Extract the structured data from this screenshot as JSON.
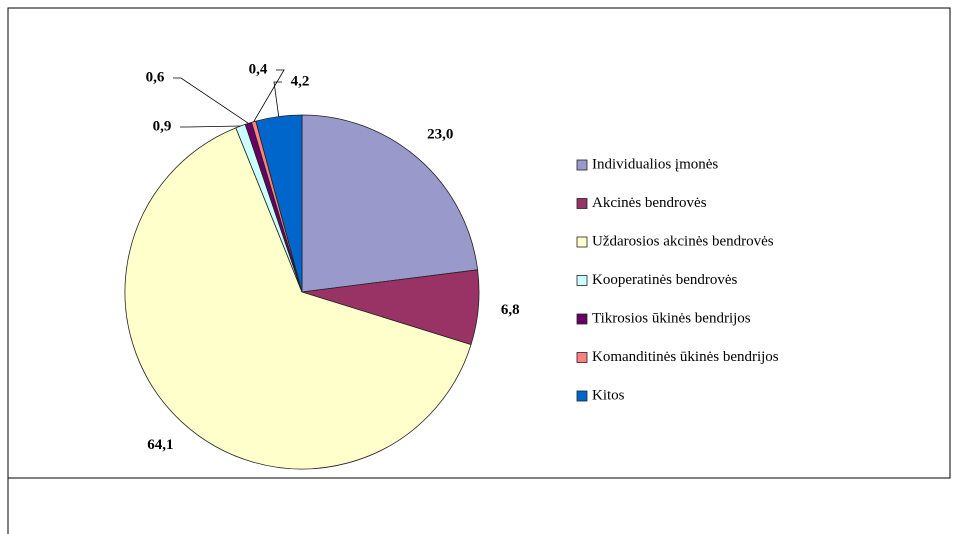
{
  "chart_data": {
    "type": "pie",
    "categories": [
      "Individualios įmonės",
      "Akcinės bendrovės",
      "Uždarosios akcinės bendrovės",
      "Kooperatinės bendrovės",
      "Tikrosios ūkinės bendrijos",
      "Komanditinės ūkinės bendrijos",
      "Kitos"
    ],
    "values": [
      23.0,
      6.8,
      64.1,
      0.9,
      0.6,
      0.4,
      4.2
    ],
    "value_labels": [
      "23,0",
      "6,8",
      "64,1",
      "0,9",
      "0,6",
      "0,4",
      "4,2"
    ],
    "colors": [
      "#9999cc",
      "#993366",
      "#ffffcc",
      "#ccffff",
      "#660066",
      "#ff8080",
      "#0066cc"
    ],
    "legend": "right"
  }
}
